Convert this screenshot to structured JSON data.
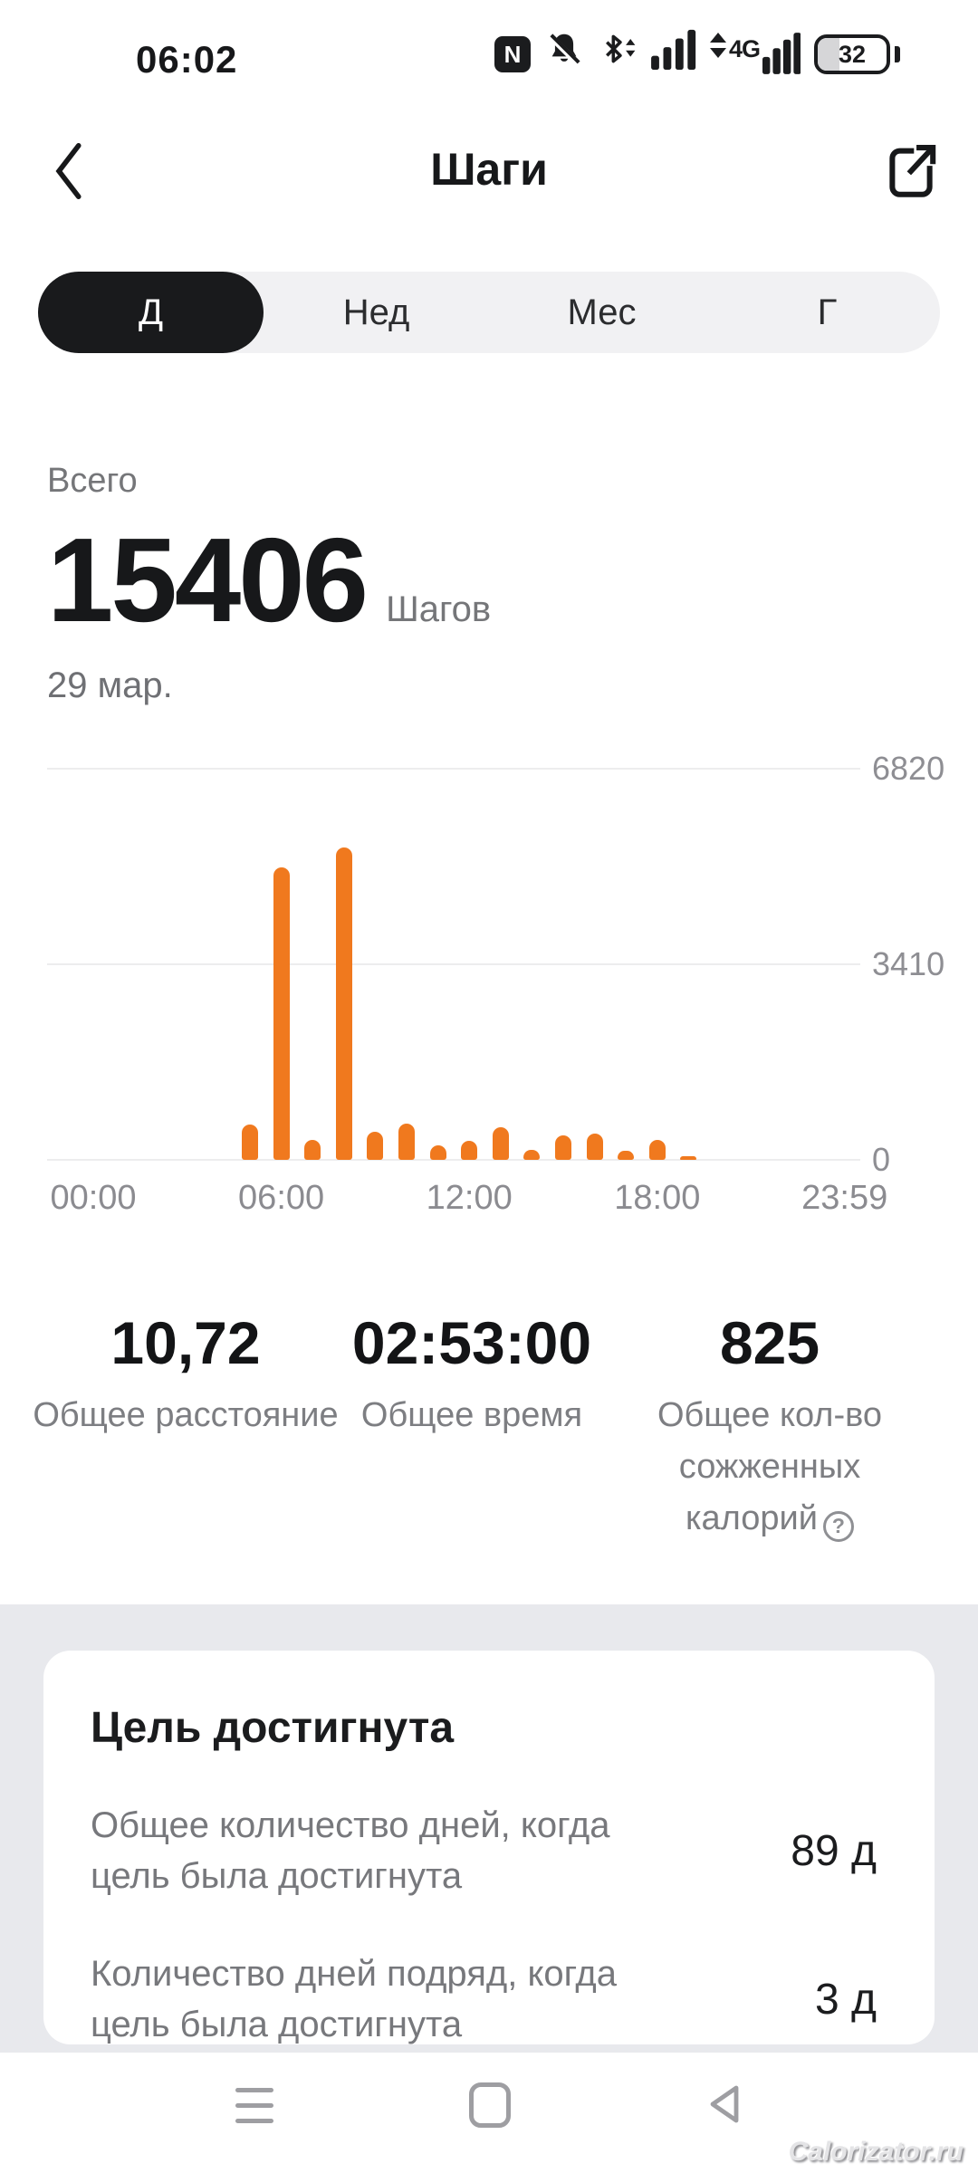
{
  "status_bar": {
    "time": "06:02",
    "nfc_glyph": "N",
    "network_label": "4G",
    "battery_percent": "32"
  },
  "header": {
    "title": "Шаги"
  },
  "tabs": [
    {
      "label": "Д",
      "selected": true
    },
    {
      "label": "Нед",
      "selected": false
    },
    {
      "label": "Мес",
      "selected": false
    },
    {
      "label": "Г",
      "selected": false
    }
  ],
  "summary": {
    "label": "Всего",
    "value": "15406",
    "unit": "Шагов",
    "date": "29 мар."
  },
  "chart_data": {
    "type": "bar",
    "title": "",
    "xlabel": "",
    "ylabel": "",
    "x_hours": [
      5,
      6,
      7,
      8,
      9,
      10,
      11,
      12,
      13,
      14,
      15,
      16,
      17,
      18,
      19
    ],
    "values": [
      610,
      5100,
      340,
      5450,
      490,
      630,
      260,
      330,
      570,
      175,
      425,
      465,
      160,
      345,
      56
    ],
    "total_steps": 15406,
    "xticks": [
      {
        "label": "00:00",
        "hour": 0
      },
      {
        "label": "06:00",
        "hour": 6
      },
      {
        "label": "12:00",
        "hour": 12
      },
      {
        "label": "18:00",
        "hour": 18
      },
      {
        "label": "23:59",
        "hour": 23.98
      }
    ],
    "yticks": [
      0,
      3410,
      6820
    ],
    "ylim": [
      0,
      6820
    ],
    "grid": true,
    "ylabel_side": "right",
    "bar_color": "#f0791e"
  },
  "stats": [
    {
      "value": "10,72",
      "label": "Общее расстояние",
      "has_help": false
    },
    {
      "value": "02:53:00",
      "label": "Общее время",
      "has_help": false
    },
    {
      "value": "825",
      "label": "Общее кол-во сожженных калорий",
      "has_help": true,
      "help_glyph": "?"
    }
  ],
  "goal_card": {
    "title": "Цель достигнута",
    "rows": [
      {
        "label": "Общее количество дней, когда цель была достигнута",
        "value": "89 д"
      },
      {
        "label": "Количество дней подряд, когда цель была достигнута",
        "value": "3 д"
      }
    ]
  },
  "watermark": "Calorizator.ru",
  "colors": {
    "accent_orange": "#f0791e",
    "text_primary": "#17181a",
    "text_secondary": "#7d7e82",
    "axis_text": "#8e8e93",
    "tab_bg": "#f1f1f3",
    "tab_selected_bg": "#191a1c",
    "section_bg": "#e8e9ed",
    "gridline": "#ededee",
    "nav_icon": "#9e9ea2"
  }
}
